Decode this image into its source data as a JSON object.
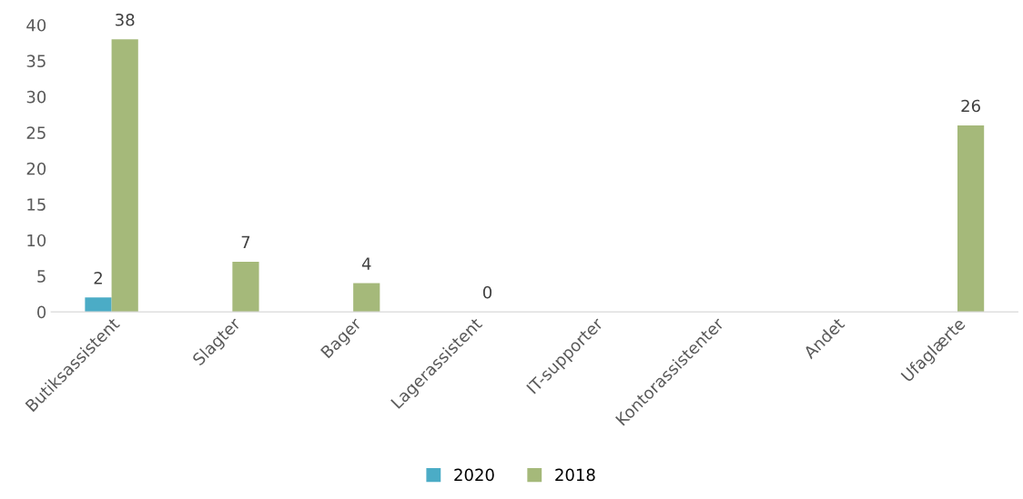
{
  "chart_data": {
    "type": "bar",
    "categories": [
      "Butiksassistent",
      "Slagter",
      "Bager",
      "Lagerassistent",
      "IT-supporter",
      "Kontorassistenter",
      "Andet",
      "Ufaglærte"
    ],
    "series": [
      {
        "name": "2020",
        "color": "#4bacc6",
        "values": [
          2,
          null,
          null,
          null,
          null,
          null,
          null,
          null
        ],
        "value_labels": [
          "2",
          null,
          null,
          null,
          null,
          null,
          null,
          null
        ]
      },
      {
        "name": "2018",
        "color": "#a5b97a",
        "values": [
          38,
          7,
          4,
          0,
          null,
          null,
          null,
          26
        ],
        "value_labels": [
          "38",
          "7",
          "4",
          "0",
          null,
          null,
          null,
          "26"
        ]
      }
    ],
    "ylim": [
      0,
      40
    ],
    "yticks": [
      0,
      5,
      10,
      15,
      20,
      25,
      30,
      35,
      40
    ],
    "grid": false,
    "legend": "bottom"
  }
}
